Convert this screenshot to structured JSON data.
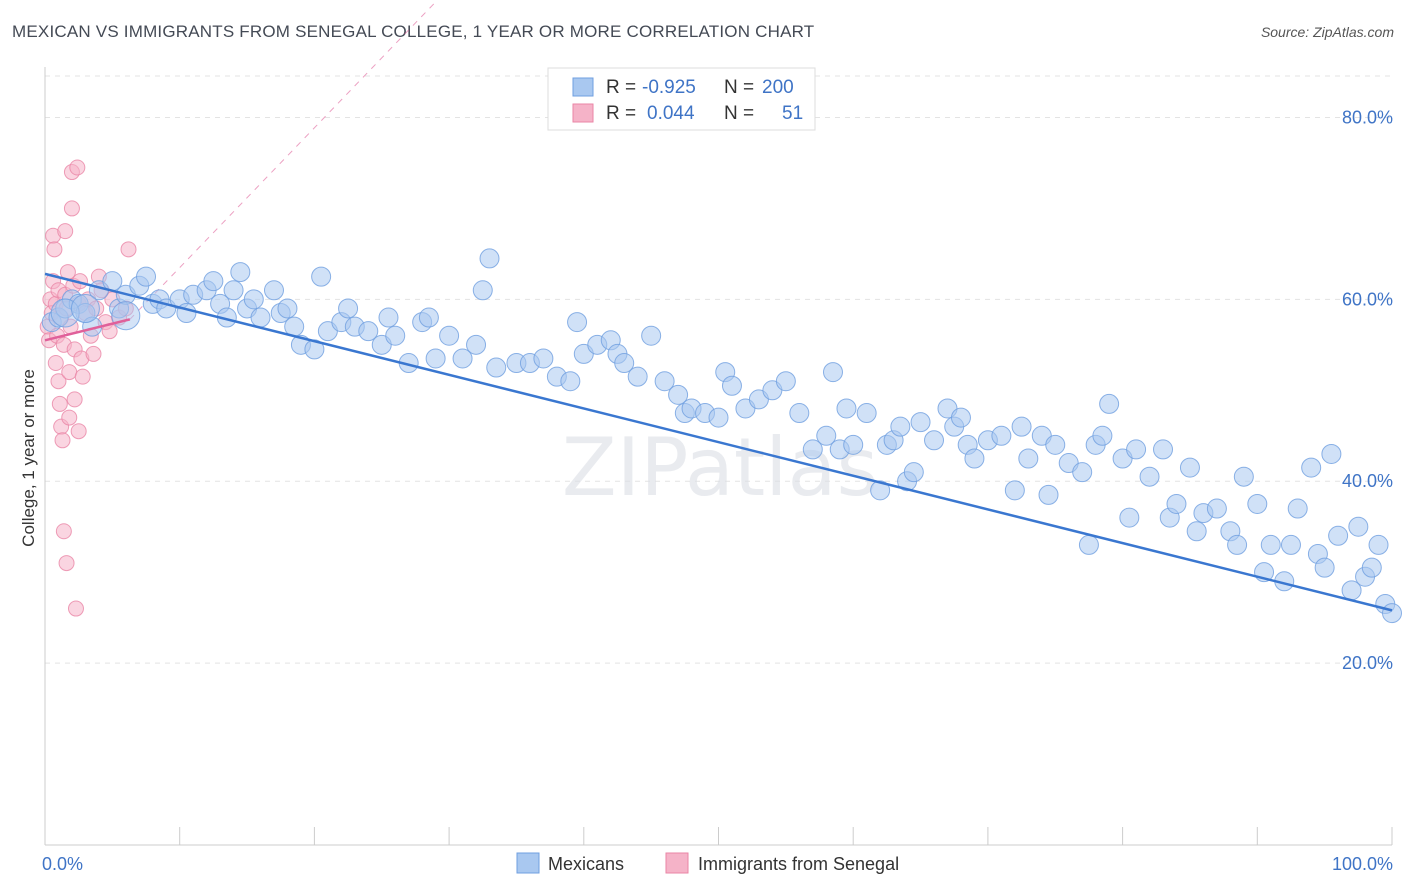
{
  "title": "MEXICAN VS IMMIGRANTS FROM SENEGAL COLLEGE, 1 YEAR OR MORE CORRELATION CHART",
  "source": "Source: ZipAtlas.com",
  "watermark": "ZIPatlas",
  "colors": {
    "blue_fill": "#a9c8f0",
    "blue_stroke": "#6f9fe0",
    "blue_line": "#3a77d0",
    "pink_fill": "#f5b3c8",
    "pink_stroke": "#ea86a6",
    "pink_line": "#e0609a",
    "tick_text": "#3f74c6",
    "grid": "#e3e3e3"
  },
  "legend": {
    "rows": [
      {
        "r_label": "R =",
        "r_value": "-0.925",
        "n_label": "N =",
        "n_value": "200"
      },
      {
        "r_label": "R =",
        "r_value": "0.044",
        "n_label": "N =",
        "n_value": "51"
      }
    ]
  },
  "bottom_legend": [
    "Mexicans",
    "Immigrants from Senegal"
  ],
  "chart_data": {
    "type": "scatter",
    "xlabel": "",
    "ylabel": "College, 1 year or more",
    "xlim": [
      0,
      100
    ],
    "ylim": [
      0,
      85
    ],
    "x_tick_labels": [
      "0.0%",
      "100.0%"
    ],
    "y_ticks": [
      20,
      40,
      60,
      80
    ],
    "y_tick_labels": [
      "20.0%",
      "40.0%",
      "60.0%",
      "80.0%"
    ],
    "grid": true,
    "legend_position": "top-center",
    "series": [
      {
        "name": "Mexicans",
        "color": "#a9c8f0",
        "trend": {
          "x": [
            0,
            100
          ],
          "y": [
            62.8,
            25.8
          ]
        },
        "points": [
          [
            0.5,
            57.5
          ],
          [
            1,
            58
          ],
          [
            1.5,
            59
          ],
          [
            2,
            60
          ],
          [
            2.5,
            59.5
          ],
          [
            3,
            58.5
          ],
          [
            3.5,
            57
          ],
          [
            4,
            61
          ],
          [
            5,
            62
          ],
          [
            5.5,
            59
          ],
          [
            6,
            60.5
          ],
          [
            7,
            61.5
          ],
          [
            7.5,
            62.5
          ],
          [
            8,
            59.5
          ],
          [
            8.5,
            60
          ],
          [
            9,
            59
          ],
          [
            10,
            60
          ],
          [
            10.5,
            58.5
          ],
          [
            11,
            60.5
          ],
          [
            12,
            61
          ],
          [
            12.5,
            62
          ],
          [
            13,
            59.5
          ],
          [
            13.5,
            58
          ],
          [
            14,
            61
          ],
          [
            14.5,
            63
          ],
          [
            15,
            59
          ],
          [
            15.5,
            60
          ],
          [
            16,
            58
          ],
          [
            17,
            61
          ],
          [
            17.5,
            58.5
          ],
          [
            18,
            59
          ],
          [
            18.5,
            57
          ],
          [
            19,
            55
          ],
          [
            20,
            54.5
          ],
          [
            20.5,
            62.5
          ],
          [
            21,
            56.5
          ],
          [
            22,
            57.5
          ],
          [
            22.5,
            59
          ],
          [
            23,
            57
          ],
          [
            24,
            56.5
          ],
          [
            25,
            55
          ],
          [
            25.5,
            58
          ],
          [
            26,
            56
          ],
          [
            27,
            53
          ],
          [
            28,
            57.5
          ],
          [
            28.5,
            58
          ],
          [
            29,
            53.5
          ],
          [
            30,
            56
          ],
          [
            31,
            53.5
          ],
          [
            32,
            55
          ],
          [
            32.5,
            61
          ],
          [
            33,
            64.5
          ],
          [
            33.5,
            52.5
          ],
          [
            35,
            53
          ],
          [
            36,
            53
          ],
          [
            37,
            53.5
          ],
          [
            38,
            51.5
          ],
          [
            39,
            51
          ],
          [
            39.5,
            57.5
          ],
          [
            40,
            54
          ],
          [
            41,
            55
          ],
          [
            42,
            55.5
          ],
          [
            42.5,
            54
          ],
          [
            43,
            53
          ],
          [
            44,
            51.5
          ],
          [
            45,
            56
          ],
          [
            46,
            51
          ],
          [
            47,
            49.5
          ],
          [
            47.5,
            47.5
          ],
          [
            48,
            48
          ],
          [
            49,
            47.5
          ],
          [
            50,
            47
          ],
          [
            50.5,
            52
          ],
          [
            51,
            50.5
          ],
          [
            52,
            48
          ],
          [
            53,
            49
          ],
          [
            54,
            50
          ],
          [
            55,
            51
          ],
          [
            56,
            47.5
          ],
          [
            57,
            43.5
          ],
          [
            58,
            45
          ],
          [
            58.5,
            52
          ],
          [
            59,
            43.5
          ],
          [
            59.5,
            48
          ],
          [
            60,
            44
          ],
          [
            61,
            47.5
          ],
          [
            62,
            39
          ],
          [
            62.5,
            44
          ],
          [
            63,
            44.5
          ],
          [
            63.5,
            46
          ],
          [
            64,
            40
          ],
          [
            64.5,
            41
          ],
          [
            65,
            46.5
          ],
          [
            66,
            44.5
          ],
          [
            67,
            48
          ],
          [
            67.5,
            46
          ],
          [
            68,
            47
          ],
          [
            68.5,
            44
          ],
          [
            69,
            42.5
          ],
          [
            70,
            44.5
          ],
          [
            71,
            45
          ],
          [
            72,
            39
          ],
          [
            72.5,
            46
          ],
          [
            73,
            42.5
          ],
          [
            74,
            45
          ],
          [
            74.5,
            38.5
          ],
          [
            75,
            44
          ],
          [
            76,
            42
          ],
          [
            77,
            41
          ],
          [
            77.5,
            33
          ],
          [
            78,
            44
          ],
          [
            78.5,
            45
          ],
          [
            79,
            48.5
          ],
          [
            80,
            42.5
          ],
          [
            80.5,
            36
          ],
          [
            81,
            43.5
          ],
          [
            82,
            40.5
          ],
          [
            83,
            43.5
          ],
          [
            83.5,
            36
          ],
          [
            84,
            37.5
          ],
          [
            85,
            41.5
          ],
          [
            85.5,
            34.5
          ],
          [
            86,
            36.5
          ],
          [
            87,
            37
          ],
          [
            88,
            34.5
          ],
          [
            88.5,
            33
          ],
          [
            89,
            40.5
          ],
          [
            90,
            37.5
          ],
          [
            90.5,
            30
          ],
          [
            91,
            33
          ],
          [
            92,
            29
          ],
          [
            92.5,
            33
          ],
          [
            93,
            37
          ],
          [
            94,
            41.5
          ],
          [
            94.5,
            32
          ],
          [
            95,
            30.5
          ],
          [
            95.5,
            43
          ],
          [
            96,
            34
          ],
          [
            97,
            28
          ],
          [
            97.5,
            35
          ],
          [
            98,
            29.5
          ],
          [
            98.5,
            30.5
          ],
          [
            99,
            33
          ],
          [
            99.5,
            26.5
          ],
          [
            100,
            25.5
          ]
        ]
      },
      {
        "name": "Immigrants from Senegal",
        "color": "#f5b3c8",
        "trend": {
          "x": [
            0,
            6.3
          ],
          "y": [
            55.5,
            57.8
          ]
        },
        "points": [
          [
            0.2,
            57
          ],
          [
            0.3,
            55.5
          ],
          [
            0.4,
            60
          ],
          [
            0.5,
            58.5
          ],
          [
            0.6,
            62
          ],
          [
            0.6,
            67
          ],
          [
            0.7,
            65.5
          ],
          [
            0.8,
            59.5
          ],
          [
            0.8,
            53
          ],
          [
            0.9,
            56
          ],
          [
            1,
            61
          ],
          [
            1,
            51
          ],
          [
            1.1,
            48.5
          ],
          [
            1.2,
            58
          ],
          [
            1.2,
            46
          ],
          [
            1.3,
            44.5
          ],
          [
            1.4,
            55
          ],
          [
            1.4,
            34.5
          ],
          [
            1.5,
            60.5
          ],
          [
            1.5,
            67.5
          ],
          [
            1.6,
            59
          ],
          [
            1.6,
            31
          ],
          [
            1.7,
            63
          ],
          [
            1.8,
            52
          ],
          [
            1.8,
            47
          ],
          [
            1.9,
            57
          ],
          [
            2,
            74
          ],
          [
            2,
            70
          ],
          [
            2.1,
            61.5
          ],
          [
            2.2,
            54.5
          ],
          [
            2.2,
            49
          ],
          [
            2.3,
            26
          ],
          [
            2.4,
            74.5
          ],
          [
            2.5,
            59.5
          ],
          [
            2.5,
            45.5
          ],
          [
            2.6,
            62
          ],
          [
            2.7,
            53.5
          ],
          [
            2.8,
            51.5
          ],
          [
            3,
            58.5
          ],
          [
            3.2,
            60
          ],
          [
            3.4,
            56
          ],
          [
            3.6,
            54
          ],
          [
            3.8,
            59
          ],
          [
            4,
            62.5
          ],
          [
            4.2,
            61
          ],
          [
            4.5,
            57.5
          ],
          [
            4.8,
            56.5
          ],
          [
            5,
            60
          ],
          [
            5.5,
            58
          ],
          [
            6,
            59
          ],
          [
            6.2,
            65.5
          ]
        ]
      }
    ]
  }
}
